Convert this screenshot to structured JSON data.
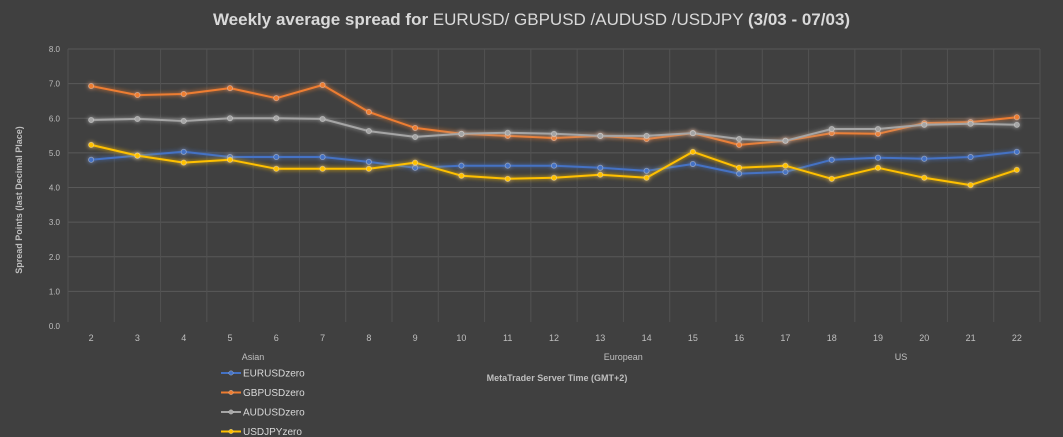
{
  "chart_data": {
    "type": "line",
    "title_parts": [
      {
        "text": "Weekly average spread for ",
        "bold": true
      },
      {
        "text": "EURUSD/ GBPUSD /AUDUSD /USDJPY ",
        "bold": false
      },
      {
        "text": "(3/03 - 07/03)",
        "bold": true
      }
    ],
    "xlabel": "MetaTrader Server Time (GMT+2)",
    "ylabel": "Spread Points  (last Decimal Place)",
    "ylim": [
      0,
      8
    ],
    "y_ticks": [
      "0.0",
      "1.0",
      "2.0",
      "3.0",
      "4.0",
      "5.0",
      "6.0",
      "7.0",
      "8.0"
    ],
    "categories": [
      "2",
      "3",
      "4",
      "5",
      "6",
      "7",
      "8",
      "9",
      "10",
      "11",
      "12",
      "13",
      "14",
      "15",
      "16",
      "17",
      "18",
      "19",
      "20",
      "21",
      "22"
    ],
    "session_labels": [
      {
        "text": "Asian",
        "at_category": "5"
      },
      {
        "text": "European",
        "at_category": "13"
      },
      {
        "text": "US",
        "at_category": "19"
      }
    ],
    "grid": true,
    "legend_position": "bottom-left",
    "series": [
      {
        "name": "EURUSDzero",
        "color": "#4472C4",
        "values": [
          4.8,
          4.92,
          5.03,
          4.88,
          4.88,
          4.88,
          4.74,
          4.57,
          4.63,
          4.63,
          4.63,
          4.57,
          4.48,
          4.68,
          4.4,
          4.45,
          4.8,
          4.86,
          4.83,
          4.88,
          5.03
        ]
      },
      {
        "name": "GBPUSDzero",
        "color": "#ED7D31",
        "values": [
          6.93,
          6.67,
          6.7,
          6.87,
          6.58,
          6.96,
          6.18,
          5.72,
          5.55,
          5.49,
          5.43,
          5.49,
          5.4,
          5.57,
          5.23,
          5.35,
          5.57,
          5.55,
          5.86,
          5.89,
          6.03
        ]
      },
      {
        "name": "AUDUSDzero",
        "color": "#A5A5A5",
        "values": [
          5.95,
          5.98,
          5.92,
          6.0,
          6.0,
          5.98,
          5.63,
          5.46,
          5.55,
          5.58,
          5.55,
          5.49,
          5.49,
          5.57,
          5.4,
          5.35,
          5.69,
          5.69,
          5.81,
          5.84,
          5.81
        ]
      },
      {
        "name": "USDJPYzero",
        "color": "#FFC000",
        "values": [
          5.23,
          4.92,
          4.72,
          4.8,
          4.54,
          4.54,
          4.54,
          4.72,
          4.34,
          4.25,
          4.28,
          4.37,
          4.28,
          5.03,
          4.57,
          4.63,
          4.25,
          4.57,
          4.28,
          4.07,
          4.51
        ]
      }
    ]
  }
}
